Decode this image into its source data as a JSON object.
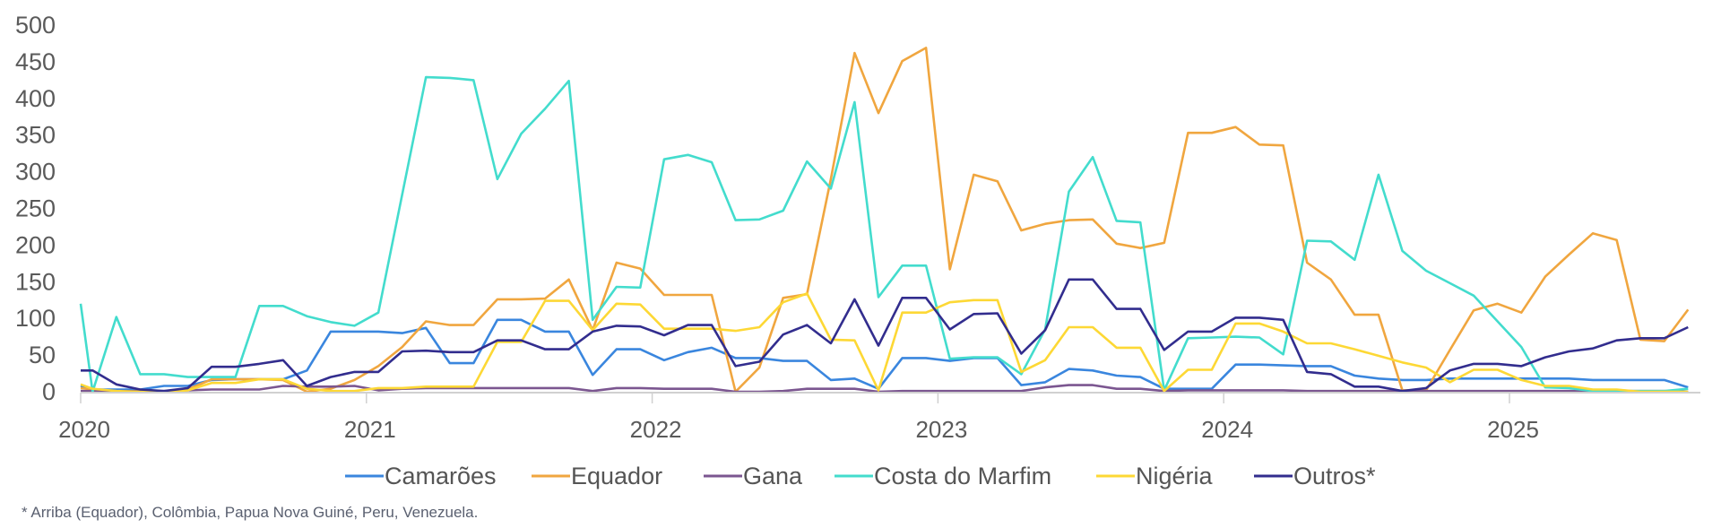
{
  "chart_data": {
    "type": "line",
    "title": "",
    "xlabel": "",
    "ylabel": "",
    "ylim": [
      0,
      500
    ],
    "yticks": [
      "0",
      "50",
      "100",
      "150",
      "200",
      "250",
      "300",
      "350",
      "400",
      "450",
      "500"
    ],
    "xticks": [
      "2020",
      "2021",
      "2022",
      "2023",
      "2024",
      "2025"
    ],
    "x_start_month": "2020-01",
    "x_end_month": "2025-08",
    "frequency": "monthly",
    "grid": false,
    "legend_position": "bottom",
    "footnote": "* Arriba (Equador), Colômbia, Papua Nova Guiné, Peru, Venezuela.",
    "series": [
      {
        "name": "Camarões",
        "color": "#3a86de",
        "value_at_axis_start": 8,
        "values": [
          3,
          3,
          3,
          8,
          8,
          16,
          17,
          17,
          17,
          29,
          82,
          82,
          82,
          80,
          87,
          39,
          39,
          98,
          98,
          82,
          82,
          23,
          58,
          58,
          43,
          54,
          60,
          46,
          46,
          42,
          42,
          16,
          18,
          4,
          46,
          46,
          42,
          46,
          46,
          9,
          13,
          31,
          29,
          22,
          20,
          4,
          4,
          4,
          37,
          37,
          36,
          35,
          35,
          22,
          18,
          16,
          16,
          18,
          18,
          18,
          18,
          18,
          18,
          16,
          16,
          16,
          16,
          6
        ]
      },
      {
        "name": "Equador",
        "color": "#f0a63f",
        "value_at_axis_start": 5,
        "values": [
          3,
          0,
          0,
          0,
          3,
          17,
          17,
          17,
          16,
          0,
          4,
          16,
          35,
          61,
          96,
          91,
          91,
          126,
          126,
          127,
          153,
          84,
          176,
          168,
          132,
          132,
          132,
          0,
          33,
          128,
          133,
          290,
          462,
          380,
          451,
          469,
          167,
          296,
          287,
          220,
          229,
          234,
          235,
          202,
          196,
          203,
          353,
          353,
          361,
          337,
          336,
          176,
          153,
          105,
          105,
          2,
          2,
          57,
          111,
          120,
          108,
          157,
          187,
          216,
          207,
          71,
          69,
          112
        ]
      },
      {
        "name": "Gana",
        "color": "#7b5690",
        "value_at_axis_start": 1,
        "values": [
          1,
          1,
          1,
          1,
          2,
          3,
          3,
          3,
          8,
          7,
          7,
          8,
          2,
          4,
          5,
          5,
          5,
          5,
          5,
          5,
          5,
          1,
          5,
          5,
          4,
          4,
          4,
          0,
          0,
          1,
          4,
          4,
          4,
          0,
          1,
          1,
          1,
          1,
          1,
          1,
          6,
          9,
          9,
          4,
          4,
          1,
          2,
          2,
          2,
          2,
          2,
          1,
          1,
          1,
          1,
          1,
          1,
          1,
          1,
          1,
          1,
          1,
          1,
          1,
          1,
          1,
          1,
          0
        ]
      },
      {
        "name": "Costa do Marfim",
        "color": "#43dccd",
        "value_at_axis_start": 120,
        "values": [
          0,
          102,
          24,
          24,
          20,
          20,
          20,
          117,
          117,
          103,
          95,
          90,
          108,
          269,
          429,
          428,
          425,
          290,
          352,
          386,
          424,
          98,
          143,
          142,
          317,
          323,
          313,
          234,
          235,
          247,
          314,
          277,
          395,
          129,
          172,
          172,
          45,
          47,
          47,
          24,
          85,
          273,
          320,
          233,
          231,
          2,
          73,
          74,
          75,
          74,
          51,
          206,
          205,
          180,
          296,
          192,
          165,
          148,
          131,
          96,
          61,
          6,
          5,
          1,
          1,
          1,
          1,
          4
        ]
      },
      {
        "name": "Nigéria",
        "color": "#fdd835",
        "value_at_axis_start": 10,
        "values": [
          4,
          1,
          0,
          0,
          2,
          12,
          12,
          17,
          17,
          4,
          1,
          1,
          5,
          5,
          7,
          7,
          7,
          68,
          68,
          124,
          124,
          84,
          120,
          119,
          86,
          86,
          86,
          83,
          88,
          122,
          134,
          71,
          70,
          2,
          108,
          108,
          122,
          125,
          125,
          27,
          43,
          88,
          88,
          60,
          60,
          1,
          30,
          30,
          93,
          93,
          82,
          66,
          66,
          58,
          49,
          40,
          33,
          13,
          30,
          30,
          16,
          8,
          8,
          3,
          3,
          0,
          0,
          0
        ]
      },
      {
        "name": "Outros*",
        "color": "#322d8e",
        "value_at_axis_start": 29,
        "values": [
          29,
          10,
          3,
          1,
          5,
          34,
          34,
          38,
          43,
          8,
          20,
          27,
          27,
          55,
          56,
          54,
          54,
          70,
          70,
          58,
          58,
          82,
          90,
          89,
          77,
          91,
          91,
          35,
          41,
          78,
          91,
          66,
          126,
          63,
          128,
          128,
          85,
          106,
          107,
          52,
          84,
          153,
          153,
          113,
          113,
          57,
          82,
          82,
          101,
          101,
          98,
          27,
          24,
          7,
          7,
          1,
          5,
          29,
          38,
          38,
          35,
          47,
          55,
          59,
          70,
          73,
          73,
          88
        ]
      }
    ]
  }
}
